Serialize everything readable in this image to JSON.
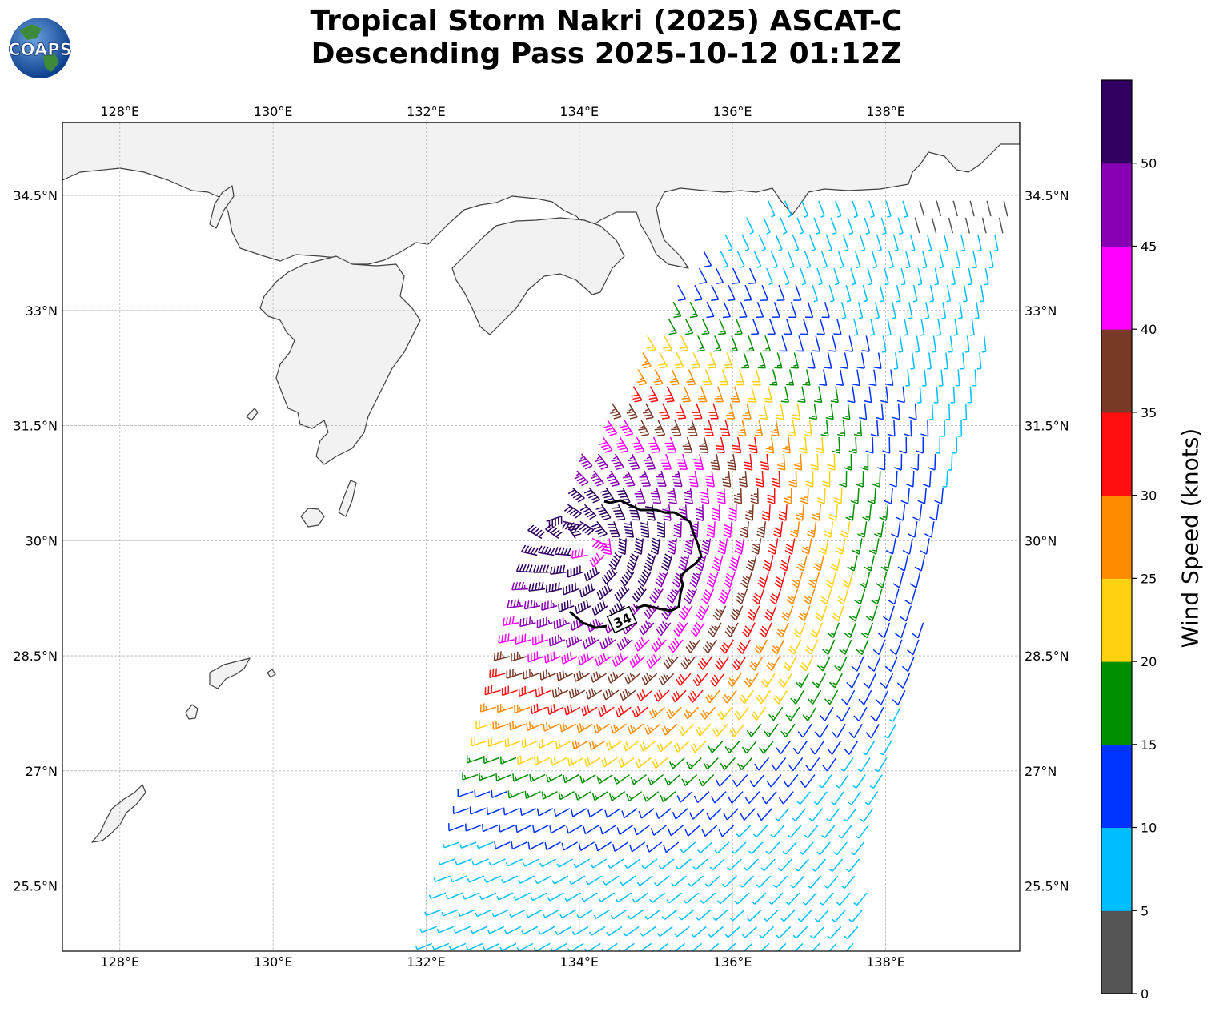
{
  "title": {
    "line1": "Tropical Storm Nakri (2025) ASCAT-C",
    "line2": "Descending Pass 2025-10-12 01:12Z"
  },
  "logo": {
    "text": "COAPS"
  },
  "map": {
    "lon_range": [
      127.25,
      139.75
    ],
    "lat_range": [
      24.65,
      35.45
    ],
    "lon_ticks": [
      "128°E",
      "130°E",
      "132°E",
      "134°E",
      "136°E",
      "138°E"
    ],
    "lat_ticks": [
      "25.5°N",
      "27°N",
      "28.5°N",
      "30°N",
      "31.5°N",
      "33°N",
      "34.5°N"
    ],
    "contour_label": "34",
    "gridlines": true
  },
  "colorbar": {
    "label": "Wind Speed (knots)",
    "ticks": [
      "0",
      "5",
      "10",
      "15",
      "20",
      "25",
      "30",
      "35",
      "40",
      "45",
      "50"
    ],
    "colors": [
      "#555555",
      "#00bfff",
      "#0033ff",
      "#008f00",
      "#ffd20f",
      "#ff8c00",
      "#ff0f0f",
      "#7a3a28",
      "#ff00ff",
      "#8800b3",
      "#2f0060"
    ]
  },
  "colors": {
    "land": "#f2f2f2",
    "coast": "#404040",
    "grid": "#b5b5b5",
    "contour": "#000000"
  }
}
